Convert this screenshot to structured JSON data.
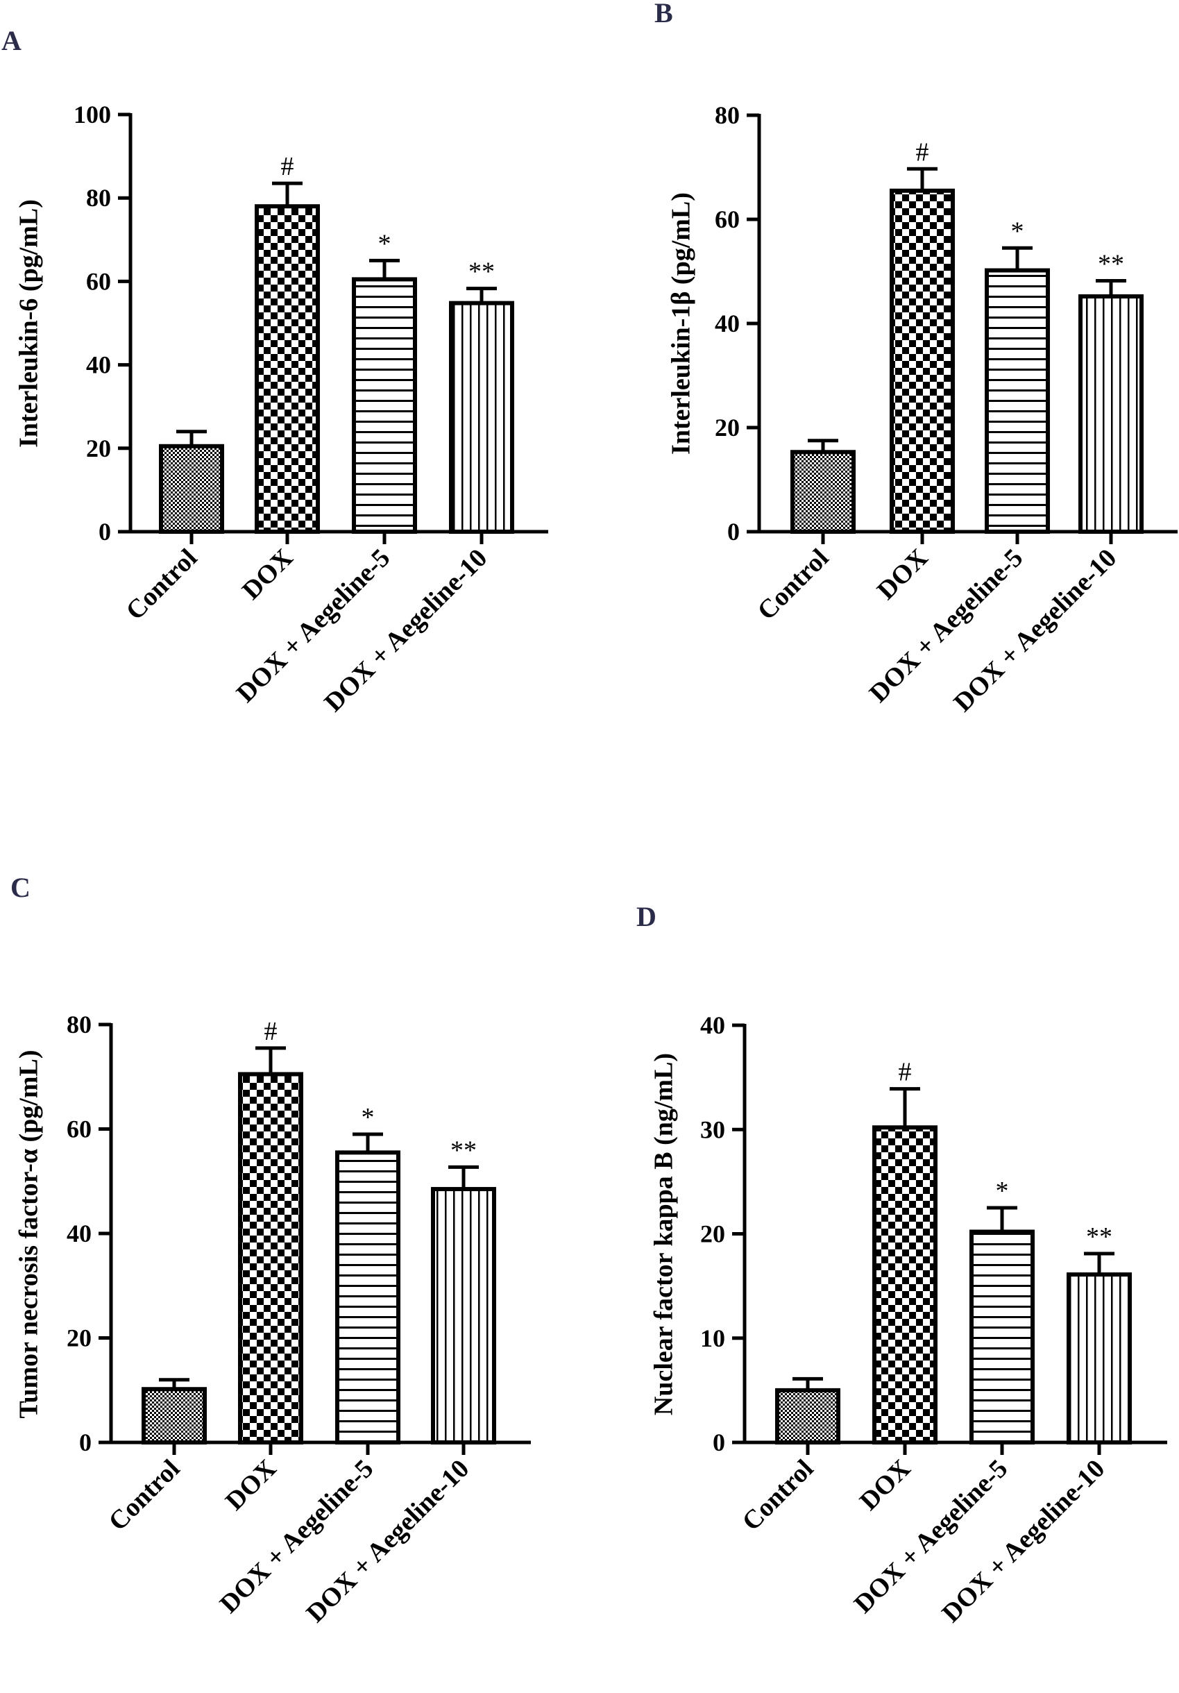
{
  "figure": {
    "colors": {
      "ink": "#000000",
      "panel_label": "#2b2b4a",
      "background": "#ffffff"
    }
  },
  "chart_data": [
    {
      "type": "bar",
      "panel": "A",
      "ylabel": "Interleukin-6 (pg/mL)",
      "ylim": [
        0,
        100
      ],
      "yticks": [
        0,
        20,
        40,
        60,
        80,
        100
      ],
      "categories": [
        "Control",
        "DOX",
        "DOX + Aegeline-5",
        "DOX + Aegeline-10"
      ],
      "values": [
        20.5,
        78,
        60.5,
        54.8
      ],
      "errors": [
        3.5,
        5.5,
        4.5,
        3.5
      ],
      "significance": [
        "",
        "#",
        "*",
        "**"
      ],
      "patterns": [
        "dots",
        "checker",
        "hlines",
        "vlines"
      ]
    },
    {
      "type": "bar",
      "panel": "B",
      "ylabel": "Interleukin-1β (pg/mL)",
      "ylim": [
        0,
        80
      ],
      "yticks": [
        0,
        20,
        40,
        60,
        80
      ],
      "categories": [
        "Control",
        "DOX",
        "DOX + Aegeline-5",
        "DOX + Aegeline-10"
      ],
      "values": [
        15.3,
        65.5,
        50.2,
        45.2
      ],
      "errors": [
        2.2,
        4.2,
        4.3,
        3.0
      ],
      "significance": [
        "",
        "#",
        "*",
        "**"
      ],
      "patterns": [
        "dots",
        "checker",
        "hlines",
        "vlines"
      ]
    },
    {
      "type": "bar",
      "panel": "C",
      "ylabel": "Tumor necrosis factor-α (pg/mL)",
      "ylim": [
        0,
        80
      ],
      "yticks": [
        0,
        20,
        40,
        60,
        80
      ],
      "categories": [
        "Control",
        "DOX",
        "DOX + Aegeline-5",
        "DOX + Aegeline-10"
      ],
      "values": [
        10.2,
        70.5,
        55.5,
        48.5
      ],
      "errors": [
        1.8,
        5.0,
        3.5,
        4.2
      ],
      "significance": [
        "",
        "#",
        "*",
        "**"
      ],
      "patterns": [
        "dots",
        "checker",
        "hlines",
        "vlines"
      ]
    },
    {
      "type": "bar",
      "panel": "D",
      "ylabel": "Nuclear factor kappa B (ng/mL)",
      "ylim": [
        0,
        40
      ],
      "yticks": [
        0,
        10,
        20,
        30,
        40
      ],
      "categories": [
        "Control",
        "DOX",
        "DOX + Aegeline-5",
        "DOX + Aegeline-10"
      ],
      "values": [
        5.0,
        30.2,
        20.2,
        16.1
      ],
      "errors": [
        1.1,
        3.7,
        2.3,
        2.0
      ],
      "significance": [
        "",
        "#",
        "*",
        "**"
      ],
      "patterns": [
        "dots",
        "checker",
        "hlines",
        "vlines"
      ]
    }
  ]
}
